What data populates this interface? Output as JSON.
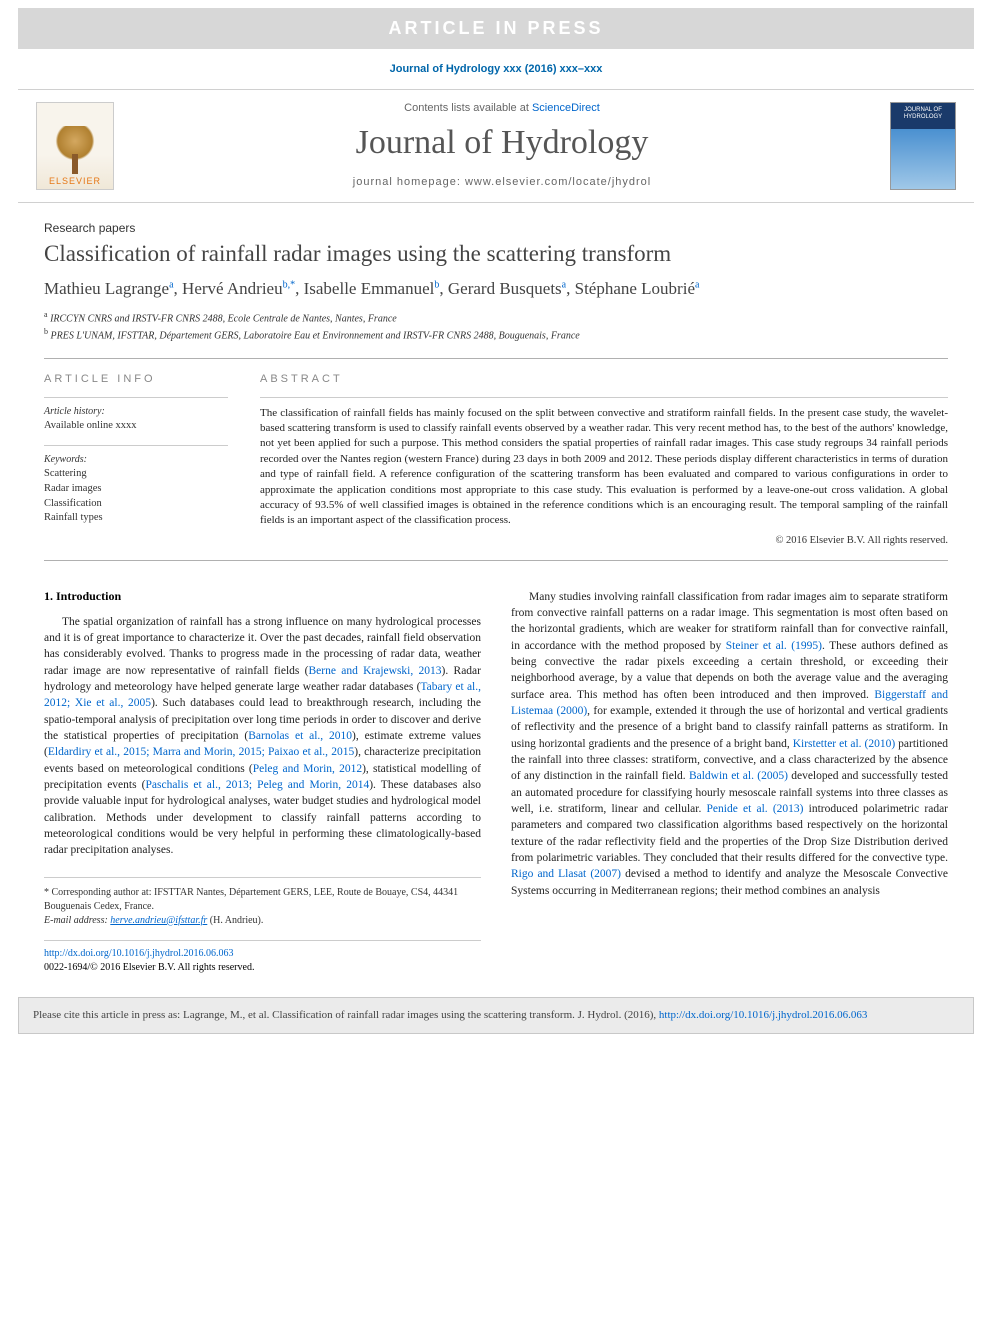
{
  "banner": {
    "text": "ARTICLE IN PRESS",
    "bg": "#d7d7d7",
    "fg": "#ffffff"
  },
  "journal_ref": "Journal of Hydrology xxx (2016) xxx–xxx",
  "masthead": {
    "contents_prefix": "Contents lists available at ",
    "contents_link": "ScienceDirect",
    "journal_title": "Journal of Hydrology",
    "homepage_label": "journal homepage: www.elsevier.com/locate/jhydrol",
    "publisher_label": "ELSEVIER",
    "cover_label": "JOURNAL OF HYDROLOGY"
  },
  "paper": {
    "type": "Research papers",
    "title": "Classification of rainfall radar images using the scattering transform",
    "authors": [
      {
        "name": "Mathieu Lagrange",
        "marks": "a"
      },
      {
        "name": "Hervé Andrieu",
        "marks": "b,*"
      },
      {
        "name": "Isabelle Emmanuel",
        "marks": "b"
      },
      {
        "name": "Gerard Busquets",
        "marks": "a"
      },
      {
        "name": "Stéphane Loubrié",
        "marks": "a"
      }
    ],
    "affiliations": [
      {
        "mark": "a",
        "text": "IRCCYN CNRS and IRSTV-FR CNRS 2488, Ecole Centrale de Nantes, Nantes, France"
      },
      {
        "mark": "b",
        "text": "PRES L'UNAM, IFSTTAR, Département GERS, Laboratoire Eau et Environnement and IRSTV-FR CNRS 2488, Bouguenais, France"
      }
    ]
  },
  "info": {
    "header": "ARTICLE INFO",
    "history_label": "Article history:",
    "history_text": "Available online xxxx",
    "keywords_label": "Keywords:",
    "keywords": [
      "Scattering",
      "Radar images",
      "Classification",
      "Rainfall types"
    ]
  },
  "abstract": {
    "header": "ABSTRACT",
    "text": "The classification of rainfall fields has mainly focused on the split between convective and stratiform rainfall fields. In the present case study, the wavelet-based scattering transform is used to classify rainfall events observed by a weather radar. This very recent method has, to the best of the authors' knowledge, not yet been applied for such a purpose. This method considers the spatial properties of rainfall radar images. This case study regroups 34 rainfall periods recorded over the Nantes region (western France) during 23 days in both 2009 and 2012. These periods display different characteristics in terms of duration and type of rainfall field. A reference configuration of the scattering transform has been evaluated and compared to various configurations in order to approximate the application conditions most appropriate to this case study. This evaluation is performed by a leave-one-out cross validation. A global accuracy of 93.5% of well classified images is obtained in the reference conditions which is an encouraging result. The temporal sampling of the rainfall fields is an important aspect of the classification process.",
    "copyright": "© 2016 Elsevier B.V. All rights reserved."
  },
  "section1": {
    "heading": "1. Introduction",
    "left_para": "The spatial organization of rainfall has a strong influence on many hydrological processes and it is of great importance to characterize it. Over the past decades, rainfall field observation has considerably evolved. Thanks to progress made in the processing of radar data, weather radar image are now representative of rainfall fields (Berne and Krajewski, 2013). Radar hydrology and meteorology have helped generate large weather radar databases (Tabary et al., 2012; Xie et al., 2005). Such databases could lead to breakthrough research, including the spatio-temporal analysis of precipitation over long time periods in order to discover and derive the statistical properties of precipitation (Barnolas et al., 2010), estimate extreme values (Eldardiry et al., 2015; Marra and Morin, 2015; Paixao et al., 2015), characterize precipitation events based on meteorological conditions (Peleg and Morin, 2012), statistical modelling of precipitation events (Paschalis et al., 2013; Peleg and Morin, 2014). These databases also provide valuable input for hydrological analyses, water budget studies and hydrological model calibration. Methods under development to classify rainfall patterns according to meteorological conditions would be very helpful in performing these climatologically-based radar precipitation analyses.",
    "right_para": "Many studies involving rainfall classification from radar images aim to separate stratiform from convective rainfall patterns on a radar image. This segmentation is most often based on the horizontal gradients, which are weaker for stratiform rainfall than for convective rainfall, in accordance with the method proposed by Steiner et al. (1995). These authors defined as being convective the radar pixels exceeding a certain threshold, or exceeding their neighborhood average, by a value that depends on both the average value and the averaging surface area. This method has often been introduced and then improved. Biggerstaff and Listemaa (2000), for example, extended it through the use of horizontal and vertical gradients of reflectivity and the presence of a bright band to classify rainfall patterns as stratiform. In using horizontal gradients and the presence of a bright band, Kirstetter et al. (2010) partitioned the rainfall into three classes: stratiform, convective, and a class characterized by the absence of any distinction in the rainfall field. Baldwin et al. (2005) developed and successfully tested an automated procedure for classifying hourly mesoscale rainfall systems into three classes as well, i.e. stratiform, linear and cellular. Penide et al. (2013) introduced polarimetric radar parameters and compared two classification algorithms based respectively on the horizontal texture of the radar reflectivity field and the properties of the Drop Size Distribution derived from polarimetric variables. They concluded that their results differed for the convective type. Rigo and Llasat (2007) devised a method to identify and analyze the Mesoscale Convective Systems occurring in Mediterranean regions; their method combines an analysis"
  },
  "citations": {
    "left": [
      "Berne and Krajewski, 2013",
      "Tabary et al., 2012; Xie et al., 2005",
      "Barnolas et al., 2010",
      "Eldardiry et al., 2015; Marra and Morin, 2015; Paixao et al., 2015",
      "Peleg and Morin, 2012",
      "Paschalis et al., 2013; Peleg and Morin, 2014"
    ],
    "right": [
      "Steiner et al. (1995)",
      "Biggerstaff and Listemaa (2000)",
      "Kirstetter et al. (2010)",
      "Baldwin et al. (2005)",
      "Penide et al. (2013)",
      "Rigo and Llasat (2007)"
    ]
  },
  "footer": {
    "corr_marker": "*",
    "corr_text": "Corresponding author at: IFSTTAR Nantes, Département GERS, LEE, Route de Bouaye, CS4, 44341 Bouguenais Cedex, France.",
    "email_label": "E-mail address:",
    "email": "herve.andrieu@ifsttar.fr",
    "email_person": "(H. Andrieu).",
    "doi": "http://dx.doi.org/10.1016/j.jhydrol.2016.06.063",
    "issn_line": "0022-1694/© 2016 Elsevier B.V. All rights reserved."
  },
  "citebox": {
    "prefix": "Please cite this article in press as: Lagrange, M., et al. Classification of rainfall radar images using the scattering transform. J. Hydrol. (2016), ",
    "link": "http://dx.doi.org/10.1016/j.jhydrol.2016.06.063"
  },
  "colors": {
    "link": "#0066cc",
    "banner_bg": "#d7d7d7",
    "banner_fg": "#ffffff",
    "body_text": "#222222",
    "rule": "#b0b0b0",
    "citebox_bg": "#ebebeb"
  },
  "fonts": {
    "body": "Georgia, serif",
    "sans": "Arial, sans-serif",
    "title_size_pt": 23,
    "journal_title_size_pt": 34,
    "abstract_size_pt": 11,
    "body_size_pt": 11.5
  }
}
